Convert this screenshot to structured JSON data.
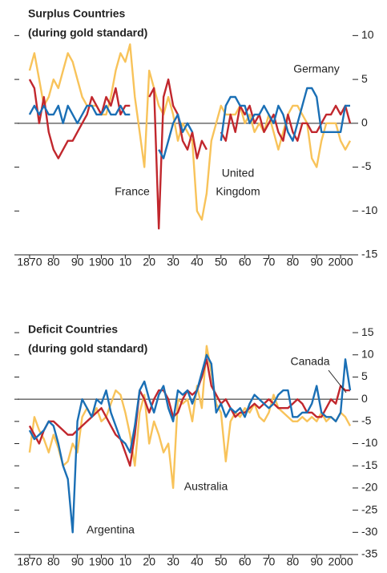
{
  "chart_data": [
    {
      "type": "line",
      "title": "Surplus Countries",
      "subtitle": "(during gold standard)",
      "x": [
        1870,
        1872,
        1874,
        1876,
        1878,
        1880,
        1882,
        1884,
        1886,
        1888,
        1890,
        1892,
        1894,
        1896,
        1898,
        1900,
        1902,
        1904,
        1906,
        1908,
        1910,
        1912,
        1914,
        1916,
        1918,
        1920,
        1922,
        1924,
        1926,
        1928,
        1930,
        1932,
        1934,
        1936,
        1938,
        1940,
        1942,
        1944,
        1946,
        1948,
        1950,
        1952,
        1954,
        1956,
        1958,
        1960,
        1962,
        1964,
        1966,
        1968,
        1970,
        1972,
        1974,
        1976,
        1978,
        1980,
        1982,
        1984,
        1986,
        1988,
        1990,
        1992,
        1994,
        1996,
        1998,
        2000,
        2002,
        2004
      ],
      "series": [
        {
          "color": "#f8c35a",
          "values": [
            6,
            8,
            5,
            2,
            3,
            5,
            4,
            6,
            8,
            7,
            5,
            3,
            2,
            2,
            2,
            1,
            1,
            3,
            6,
            8,
            7,
            9,
            3,
            -1,
            -5,
            6,
            4,
            2,
            1,
            3,
            1,
            -2,
            0,
            -1,
            -2,
            -10,
            -11,
            -8,
            -2,
            0,
            2,
            1,
            1,
            1,
            2,
            0,
            1,
            -1,
            0,
            -1,
            1,
            -1,
            -3,
            -1,
            1,
            2,
            2,
            1,
            0,
            -4,
            -5,
            -2,
            0,
            0,
            0,
            -2,
            -3,
            -2
          ]
        },
        {
          "color": "#c1272d",
          "values": [
            5,
            4,
            0,
            3,
            -1,
            -3,
            -4,
            -3,
            -2,
            -2,
            -1,
            0,
            1,
            3,
            2,
            1,
            3,
            2,
            4,
            1,
            2,
            2,
            null,
            null,
            null,
            3,
            4,
            -12,
            3,
            5,
            2,
            1,
            -2,
            -3,
            -1,
            -4,
            -2,
            -3,
            null,
            null,
            -1,
            -2,
            1,
            -1,
            2,
            1,
            2,
            0,
            1,
            -1,
            0,
            1,
            -1,
            -2,
            1,
            -1,
            -2,
            0,
            0,
            -1,
            -1,
            0,
            1,
            1,
            2,
            1,
            2,
            0
          ]
        },
        {
          "color": "#1a6fb5",
          "values": [
            1,
            2,
            1,
            2,
            1,
            1,
            2,
            0,
            2,
            1,
            0,
            1,
            2,
            2,
            1,
            1,
            2,
            1,
            1,
            2,
            1,
            1,
            null,
            null,
            null,
            null,
            null,
            -3,
            -4,
            -2,
            0,
            1,
            -1,
            0,
            -1,
            null,
            null,
            null,
            null,
            null,
            -2,
            2,
            3,
            3,
            2,
            2,
            0,
            1,
            1,
            2,
            1,
            0,
            2,
            1,
            -1,
            -2,
            0,
            2,
            4,
            4,
            3,
            -1,
            -1,
            -1,
            -1,
            -1,
            2,
            2
          ]
        }
      ],
      "annotations": [
        [
          "France"
        ],
        [
          "United",
          "Kingdom"
        ],
        [
          "Germany"
        ]
      ],
      "xlim": [
        1865,
        2005
      ],
      "xticks": [
        1870,
        {
          "value": 1880,
          "label": "80"
        },
        {
          "value": 1890,
          "label": "90"
        },
        1900,
        {
          "value": 1910,
          "label": "10"
        },
        {
          "value": 1920,
          "label": "20"
        },
        {
          "value": 1930,
          "label": "30"
        },
        {
          "value": 1940,
          "label": "40"
        },
        {
          "value": 1950,
          "label": "50"
        },
        {
          "value": 1960,
          "label": "60"
        },
        {
          "value": 1970,
          "label": "70"
        },
        {
          "value": 1980,
          "label": "80"
        },
        {
          "value": 1990,
          "label": "90"
        },
        2000
      ],
      "ylim": [
        -15,
        12.5
      ],
      "yticks": [
        -15,
        -10,
        -5,
        0,
        5,
        10
      ]
    },
    {
      "type": "line",
      "title": "Deficit Countries",
      "subtitle": "(during gold standard)",
      "x": [
        1870,
        1872,
        1874,
        1876,
        1878,
        1880,
        1882,
        1884,
        1886,
        1888,
        1890,
        1892,
        1894,
        1896,
        1898,
        1900,
        1902,
        1904,
        1906,
        1908,
        1910,
        1912,
        1914,
        1916,
        1918,
        1920,
        1922,
        1924,
        1926,
        1928,
        1930,
        1932,
        1934,
        1936,
        1938,
        1940,
        1942,
        1944,
        1946,
        1948,
        1950,
        1952,
        1954,
        1956,
        1958,
        1960,
        1962,
        1964,
        1966,
        1968,
        1970,
        1972,
        1974,
        1976,
        1978,
        1980,
        1982,
        1984,
        1986,
        1988,
        1990,
        1992,
        1994,
        1996,
        1998,
        2000,
        2002,
        2004
      ],
      "series": [
        {
          "color": "#f8c35a",
          "values": [
            -12,
            -4,
            -7,
            -9,
            -12,
            -8,
            -11,
            -15,
            -14,
            -10,
            -12,
            -4,
            -2,
            -4,
            -2,
            -5,
            -4,
            -1,
            2,
            1,
            -3,
            -8,
            -15,
            -3,
            1,
            -10,
            -5,
            -8,
            -12,
            -10,
            -20,
            0,
            -1,
            0,
            -5,
            3,
            -2,
            12,
            6,
            -1,
            -3,
            -14,
            -5,
            -3,
            -4,
            -2,
            -3,
            -1,
            -4,
            -5,
            -3,
            1,
            -2,
            -3,
            -4,
            -5,
            -5,
            -4,
            -5,
            -4,
            -5,
            -3,
            -5,
            -4,
            -5,
            -3,
            -4,
            -6
          ]
        },
        {
          "color": "#c1272d",
          "values": [
            -6,
            -8,
            -10,
            -7,
            -5,
            -5,
            -6,
            -7,
            -8,
            -8,
            -7,
            -6,
            -5,
            -4,
            -3,
            -2,
            -4,
            -6,
            -8,
            -9,
            -12,
            -15,
            -8,
            2,
            0,
            -3,
            0,
            2,
            2,
            0,
            -4,
            -3,
            0,
            2,
            1,
            2,
            5,
            9,
            3,
            1,
            -1,
            0,
            -2,
            -4,
            -3,
            -3,
            -2,
            -1,
            -2,
            -1,
            0,
            -1,
            -2,
            -2,
            -2,
            -1,
            0,
            -1,
            -3,
            -3,
            -4,
            -4,
            -2,
            0,
            -1,
            3,
            2,
            2
          ]
        },
        {
          "color": "#1a6fb5",
          "values": [
            -7,
            -9,
            -8,
            -7,
            -5,
            -6,
            -10,
            -15,
            -18,
            -30,
            -5,
            0,
            -2,
            -4,
            0,
            -1,
            2,
            -3,
            -6,
            -9,
            -10,
            -12,
            -6,
            2,
            4,
            0,
            -3,
            1,
            3,
            -2,
            -5,
            2,
            1,
            2,
            -1,
            2,
            6,
            10,
            8,
            -3,
            -1,
            -4,
            -2,
            -3,
            -2,
            -4,
            -1,
            1,
            0,
            -1,
            -2,
            -1,
            1,
            2,
            2,
            -4,
            -4,
            -3,
            -3,
            -1,
            3,
            -3,
            -4,
            -4,
            -5,
            -3,
            9,
            2
          ]
        }
      ],
      "annotations": [
        [
          "Canada"
        ],
        [
          "Australia"
        ],
        [
          "Argentina"
        ]
      ],
      "xlim": [
        1865,
        2005
      ],
      "xticks": [
        1870,
        {
          "value": 1880,
          "label": "80"
        },
        {
          "value": 1890,
          "label": "90"
        },
        1900,
        {
          "value": 1910,
          "label": "10"
        },
        {
          "value": 1920,
          "label": "20"
        },
        {
          "value": 1930,
          "label": "30"
        },
        {
          "value": 1940,
          "label": "40"
        },
        {
          "value": 1950,
          "label": "50"
        },
        {
          "value": 1960,
          "label": "60"
        },
        {
          "value": 1970,
          "label": "70"
        },
        {
          "value": 1980,
          "label": "80"
        },
        {
          "value": 1990,
          "label": "90"
        },
        2000
      ],
      "ylim": [
        -35,
        17
      ],
      "yticks": [
        -35,
        -30,
        -25,
        -20,
        -15,
        -10,
        -5,
        0,
        5,
        10,
        15
      ]
    }
  ]
}
